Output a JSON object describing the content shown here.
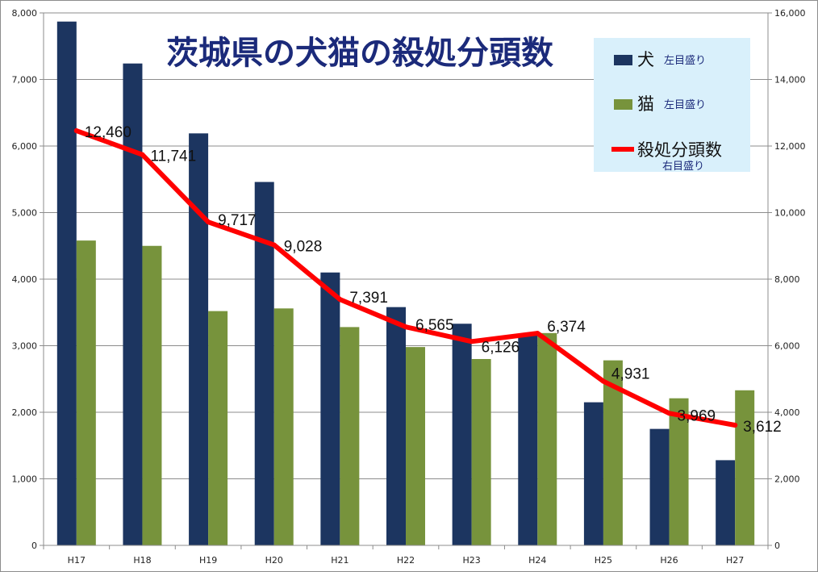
{
  "chart_data": {
    "type": "bar",
    "title": "茨城県の犬猫の殺処分頭数",
    "categories": [
      "H17",
      "H18",
      "H19",
      "H20",
      "H21",
      "H22",
      "H23",
      "H24",
      "H25",
      "H26",
      "H27"
    ],
    "series": [
      {
        "name": "犬",
        "axis": "left",
        "axis_note": "左目盛り",
        "kind": "bar",
        "color": "#1c3560",
        "values": [
          7870,
          7240,
          6190,
          5460,
          4100,
          3580,
          3330,
          3180,
          2150,
          1750,
          1280
        ]
      },
      {
        "name": "猫",
        "axis": "left",
        "axis_note": "左目盛り",
        "kind": "bar",
        "color": "#77933c",
        "values": [
          4580,
          4500,
          3520,
          3560,
          3280,
          2980,
          2800,
          3190,
          2780,
          2210,
          2330
        ]
      },
      {
        "name": "殺処分頭数",
        "axis": "right",
        "axis_note": "右目盛り",
        "kind": "line",
        "color": "#ff0000",
        "values": [
          12460,
          11741,
          9717,
          9028,
          7391,
          6565,
          6126,
          6374,
          4931,
          3969,
          3612
        ],
        "labels": [
          "12,460",
          "11,741",
          "9,717",
          "9,028",
          "7,391",
          "6,565",
          "6,126",
          "6,374",
          "4,931",
          "3,969",
          "3,612"
        ]
      }
    ],
    "y_left": {
      "min": 0,
      "max": 8000,
      "step": 1000,
      "tick_labels": [
        "0",
        "1,000",
        "2,000",
        "3,000",
        "4,000",
        "5,000",
        "6,000",
        "7,000",
        "8,000"
      ]
    },
    "y_right": {
      "min": 0,
      "max": 16000,
      "step": 2000,
      "tick_labels": [
        "0",
        "2,000",
        "4,000",
        "6,000",
        "8,000",
        "10,000",
        "12,000",
        "14,000",
        "16,000"
      ]
    },
    "grid": true,
    "legend_position": "top-right",
    "legend_background": "#d9f0fb",
    "title_color": "#1b2a7a"
  }
}
